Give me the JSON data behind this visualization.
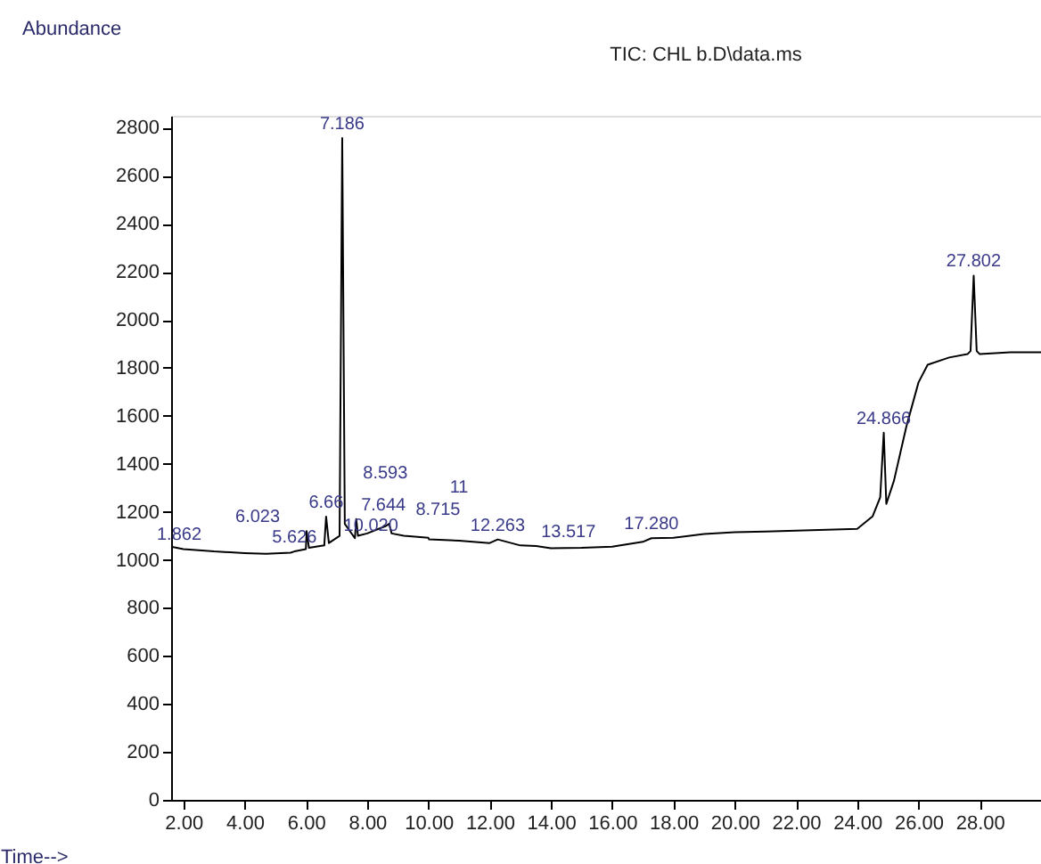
{
  "chart_data": {
    "type": "line",
    "title": "TIC: CHL    b.D\\data.ms",
    "xlabel": "Time-->",
    "ylabel": "Abundance",
    "x": [
      1.6,
      2.0,
      3.0,
      4.0,
      4.7,
      5.5,
      5.626,
      6.0,
      6.023,
      6.1,
      6.6,
      6.66,
      6.75,
      7.1,
      7.186,
      7.27,
      7.6,
      7.644,
      7.7,
      8.0,
      8.593,
      8.715,
      8.8,
      9.2,
      10.0,
      10.02,
      11.0,
      12.0,
      12.263,
      13.0,
      13.517,
      14.0,
      15.0,
      16.0,
      17.0,
      17.28,
      18.0,
      19.0,
      20.0,
      21.0,
      22.0,
      23.0,
      24.0,
      24.5,
      24.75,
      24.866,
      24.95,
      25.2,
      25.6,
      26.0,
      26.3,
      27.0,
      27.6,
      27.7,
      27.802,
      27.9,
      28.0,
      29.0,
      30.0
    ],
    "series": [
      {
        "color": "#000000",
        "values": [
          1055,
          1045,
          1035,
          1028,
          1025,
          1030,
          1035,
          1045,
          1120,
          1050,
          1060,
          1180,
          1070,
          1100,
          2757,
          1150,
          1090,
          1170,
          1100,
          1110,
          1140,
          1150,
          1110,
          1100,
          1092,
          1085,
          1080,
          1070,
          1085,
          1060,
          1058,
          1048,
          1050,
          1055,
          1075,
          1090,
          1092,
          1108,
          1115,
          1118,
          1122,
          1125,
          1129,
          1181,
          1260,
          1530,
          1233,
          1330,
          1553,
          1739,
          1813,
          1843,
          1857,
          1870,
          2184,
          1870,
          1857,
          1865,
          1865
        ]
      }
    ],
    "xlim": [
      1.6,
      30.0
    ],
    "ylim": [
      0,
      2850
    ],
    "xticks": [
      {
        "value": 2,
        "label": "2.00"
      },
      {
        "value": 4,
        "label": "4.00"
      },
      {
        "value": 6,
        "label": "6.00"
      },
      {
        "value": 8,
        "label": "8.00"
      },
      {
        "value": 10,
        "label": "10.00"
      },
      {
        "value": 12,
        "label": "12.00"
      },
      {
        "value": 14,
        "label": "14.00"
      },
      {
        "value": 16,
        "label": "16.00"
      },
      {
        "value": 18,
        "label": "18.00"
      },
      {
        "value": 20,
        "label": "20.00"
      },
      {
        "value": 22,
        "label": "22.00"
      },
      {
        "value": 24,
        "label": "24.00"
      },
      {
        "value": 26,
        "label": "26.00"
      },
      {
        "value": 28,
        "label": "28.00"
      }
    ],
    "yticks": [
      0,
      200,
      400,
      600,
      800,
      1000,
      1200,
      1400,
      1600,
      1800,
      2000,
      2200,
      2400,
      2600,
      2800
    ],
    "grid": false,
    "marker": "none",
    "line_style": "solid",
    "annotations": [
      {
        "text": "7.186",
        "x": 7.186,
        "y": 2757
      },
      {
        "text": "1.862",
        "x": 1.862,
        "y": 1048
      },
      {
        "text": "5.626",
        "x": 5.626,
        "y": 1035
      },
      {
        "text": "6.023",
        "x": 6.023,
        "y": 1120
      },
      {
        "text": "6.66",
        "x": 6.66,
        "y": 1180
      },
      {
        "text": "7.644",
        "x": 7.644,
        "y": 1170
      },
      {
        "text": "8.715",
        "x": 8.715,
        "y": 1150
      },
      {
        "text": "8.593",
        "x": 8.593,
        "y": 1140
      },
      {
        "text": "10.020",
        "x": 10.02,
        "y": 1085
      },
      {
        "text": "11",
        "x": 11.0,
        "y": 1080
      },
      {
        "text": "12.263",
        "x": 12.263,
        "y": 1085
      },
      {
        "text": "13.517",
        "x": 13.517,
        "y": 1058
      },
      {
        "text": "17.280",
        "x": 17.28,
        "y": 1090
      },
      {
        "text": "24.866",
        "x": 24.866,
        "y": 1530
      },
      {
        "text": "27.802",
        "x": 27.802,
        "y": 2184
      }
    ]
  }
}
